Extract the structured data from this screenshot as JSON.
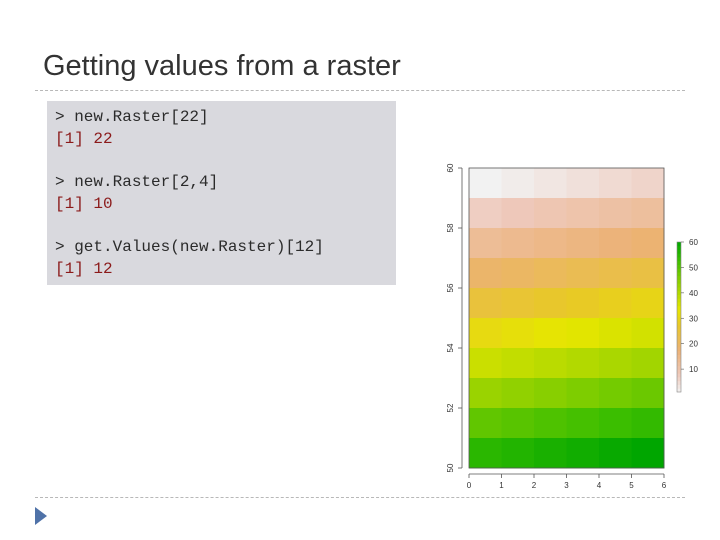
{
  "slide": {
    "title": "Getting values from a raster"
  },
  "code": [
    {
      "text": "> new.Raster[22]",
      "kind": "cmd"
    },
    {
      "text": "[1] 22",
      "kind": "out"
    },
    {
      "text": "> new.Raster[2,4]",
      "kind": "cmd"
    },
    {
      "text": "[1] 10",
      "kind": "out"
    },
    {
      "text": "> get.Values(new.Raster)[12]",
      "kind": "cmd"
    },
    {
      "text": "[1] 12",
      "kind": "out"
    }
  ],
  "colors": {
    "code_background": "#d9d9de",
    "command_text": "#2b2b2b",
    "output_text": "#8b1a1a",
    "bullet": "#4f72a8"
  },
  "chart_data": {
    "type": "heatmap",
    "title": "",
    "xlabel": "",
    "ylabel": "",
    "xlim": [
      0,
      6
    ],
    "ylim": [
      50,
      60
    ],
    "x_ticks": [
      "0",
      "1",
      "2",
      "3",
      "4",
      "5",
      "6"
    ],
    "y_ticks": [
      "50",
      "52",
      "54",
      "56",
      "58",
      "60"
    ],
    "ncol": 6,
    "nrow": 10,
    "values": [
      [
        1,
        2,
        3,
        4,
        5,
        6
      ],
      [
        7,
        8,
        9,
        10,
        11,
        12
      ],
      [
        13,
        14,
        15,
        16,
        17,
        18
      ],
      [
        19,
        20,
        21,
        22,
        23,
        24
      ],
      [
        25,
        26,
        27,
        28,
        29,
        30
      ],
      [
        31,
        32,
        33,
        34,
        35,
        36
      ],
      [
        37,
        38,
        39,
        40,
        41,
        42
      ],
      [
        43,
        44,
        45,
        46,
        47,
        48
      ],
      [
        49,
        50,
        51,
        52,
        53,
        54
      ],
      [
        55,
        56,
        57,
        58,
        59,
        60
      ]
    ],
    "color_scale": "terrain (reversed)",
    "legend": {
      "position": "right",
      "ticks": [
        "10",
        "20",
        "30",
        "40",
        "50",
        "60"
      ],
      "range": [
        1,
        60
      ]
    },
    "grid": false
  }
}
